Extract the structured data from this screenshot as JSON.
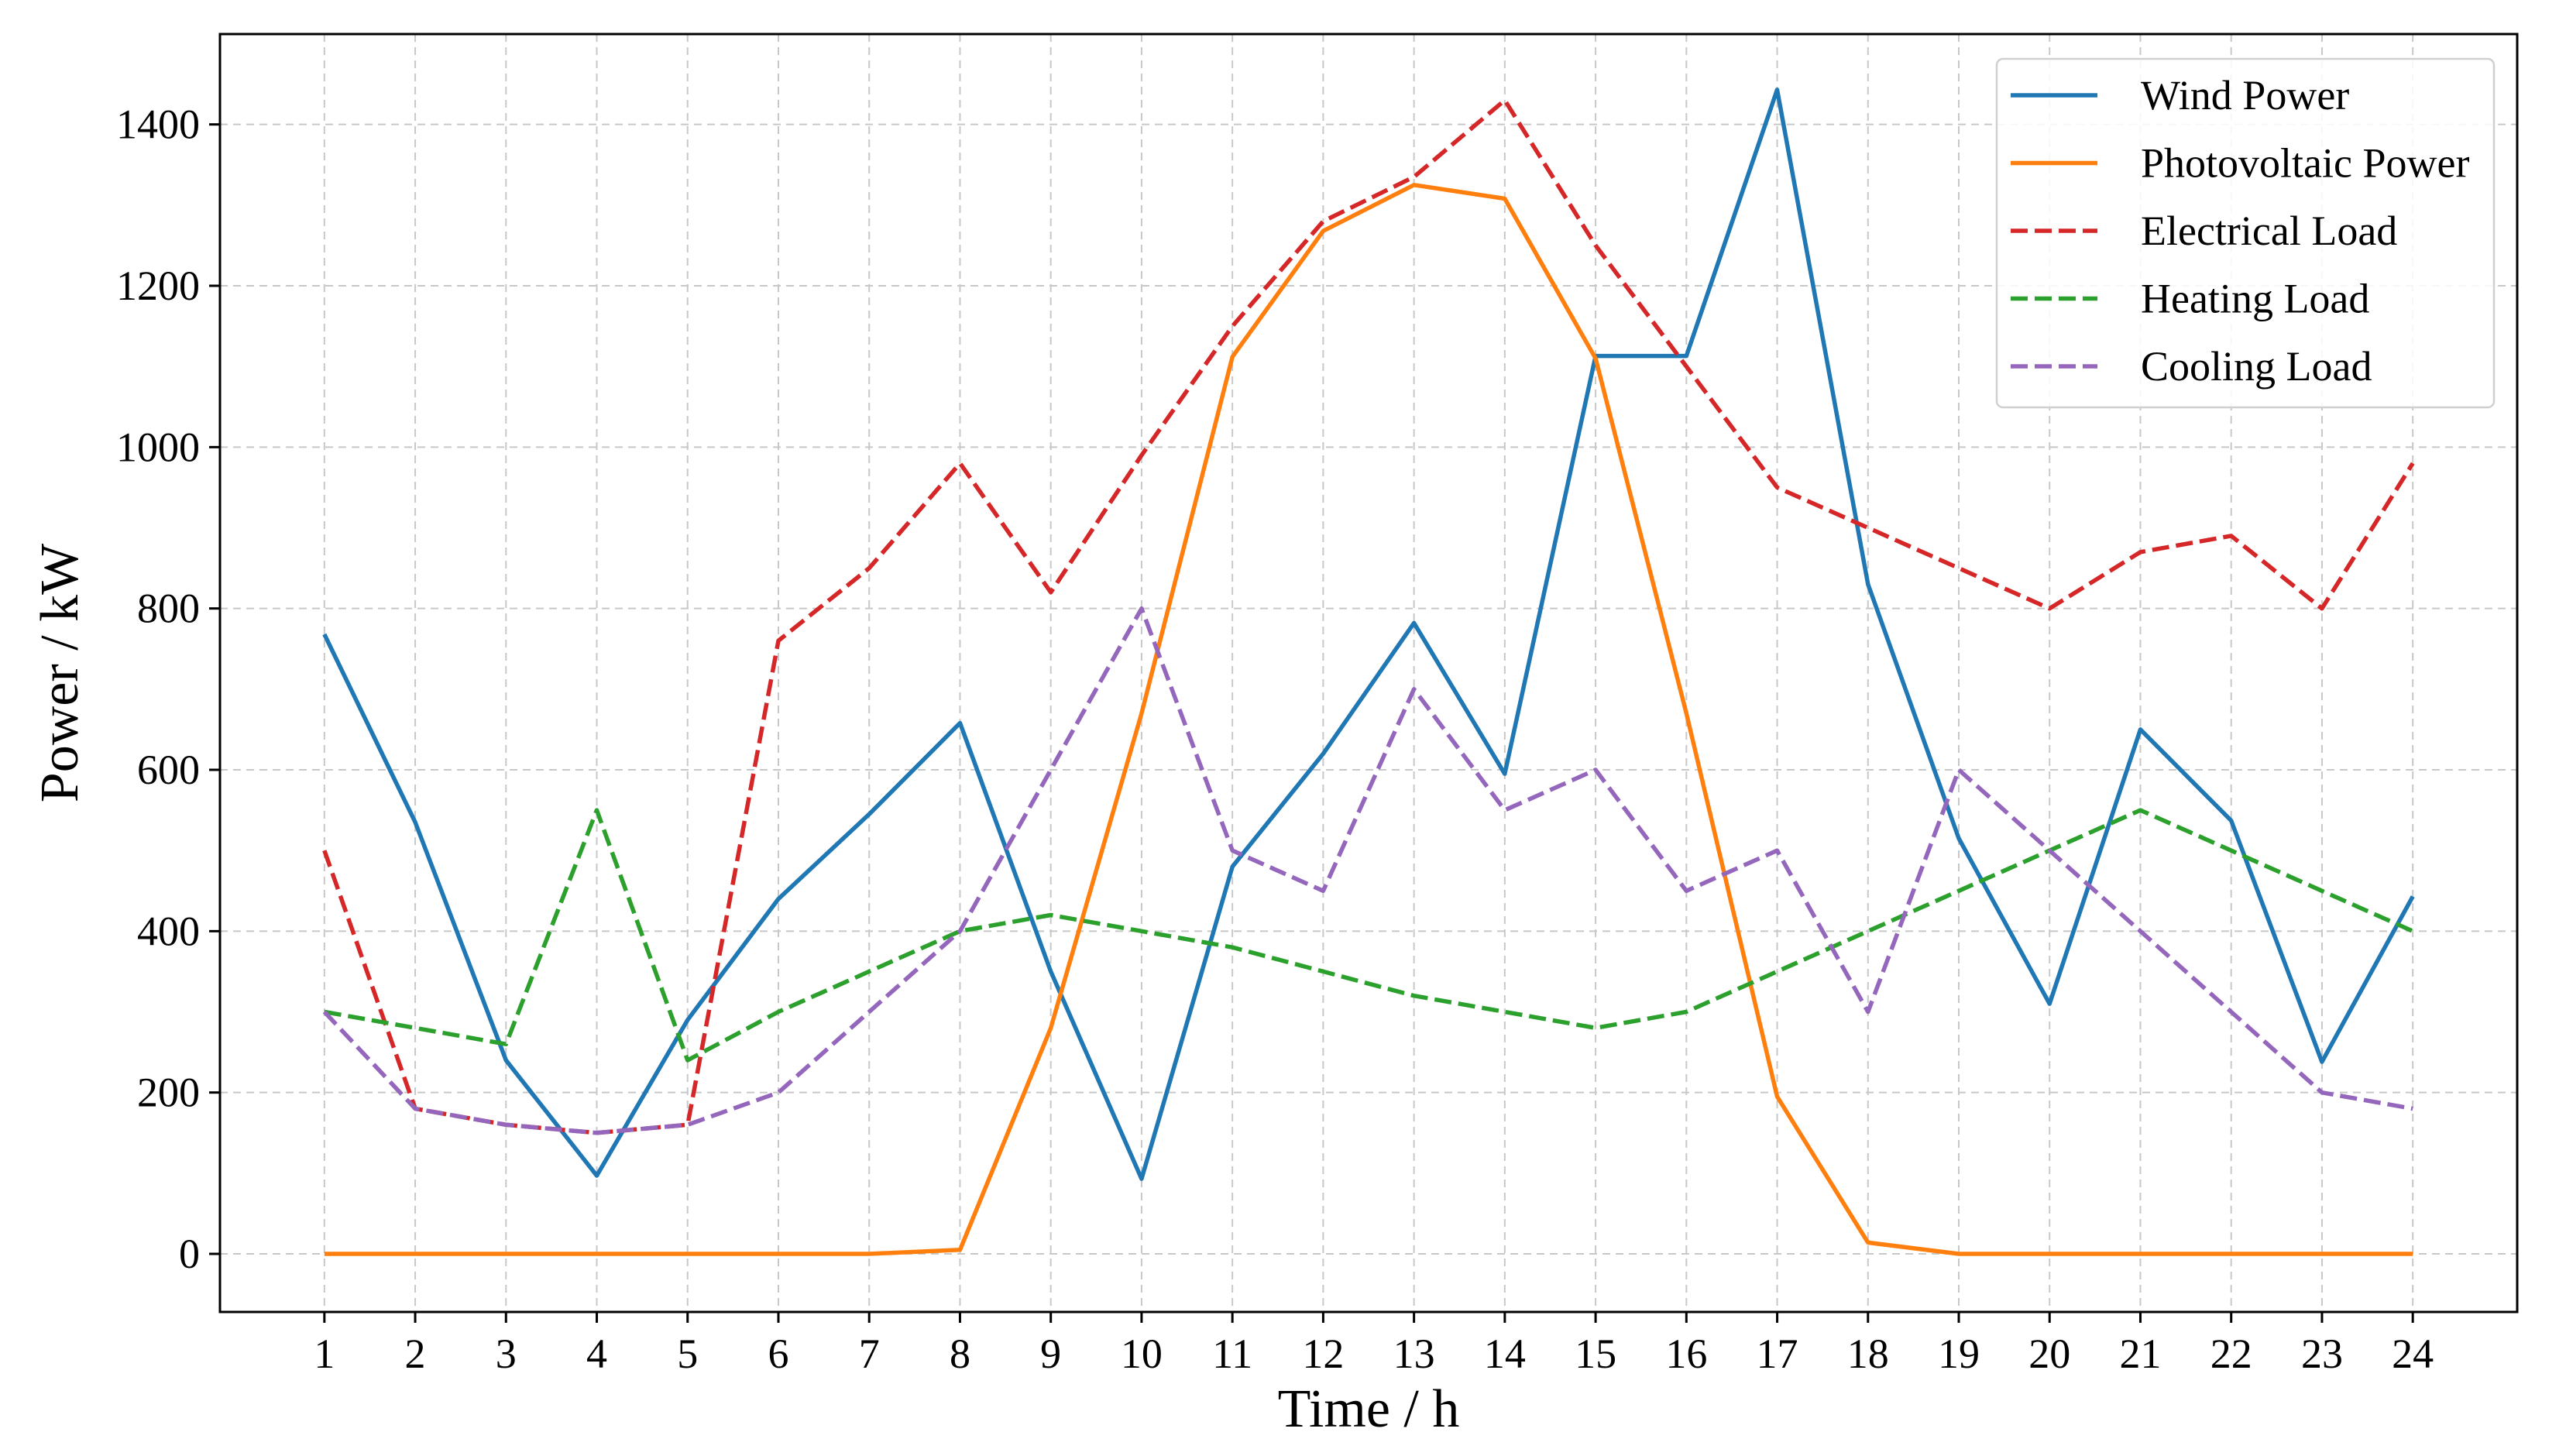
{
  "chart_data": {
    "type": "line",
    "xlabel": "Time / h",
    "ylabel": "Power / kW",
    "x": [
      1,
      2,
      3,
      4,
      5,
      6,
      7,
      8,
      9,
      10,
      11,
      12,
      13,
      14,
      15,
      16,
      17,
      18,
      19,
      20,
      21,
      22,
      23,
      24
    ],
    "xlim": [
      -0.15,
      25.15
    ],
    "ylim": [
      -72,
      1512
    ],
    "yticks": [
      0,
      200,
      400,
      600,
      800,
      1000,
      1200,
      1400
    ],
    "grid": true,
    "legend_position": "top-right",
    "series": [
      {
        "name": "Wind Power",
        "color": "#1f77b4",
        "dash": "solid",
        "values": [
          768,
          535,
          240,
          97,
          290,
          440,
          545,
          658,
          350,
          93,
          480,
          620,
          782,
          595,
          1113,
          1113,
          1443,
          830,
          515,
          310,
          650,
          537,
          238,
          443
        ]
      },
      {
        "name": "Photovoltaic Power",
        "color": "#ff7f0e",
        "dash": "solid",
        "values": [
          0,
          0,
          0,
          0,
          0,
          0,
          0,
          5,
          280,
          670,
          1112,
          1268,
          1325,
          1308,
          1110,
          670,
          195,
          14,
          0,
          0,
          0,
          0,
          0,
          0
        ]
      },
      {
        "name": "Electrical Load",
        "color": "#d62728",
        "dash": "dashed",
        "values": [
          500,
          180,
          160,
          150,
          160,
          760,
          850,
          980,
          820,
          990,
          1150,
          1280,
          1335,
          1430,
          1250,
          1100,
          950,
          900,
          850,
          800,
          870,
          890,
          800,
          980
        ]
      },
      {
        "name": "Heating Load",
        "color": "#2ca02c",
        "dash": "dashed",
        "values": [
          300,
          280,
          260,
          550,
          240,
          300,
          350,
          400,
          420,
          400,
          380,
          350,
          320,
          300,
          280,
          300,
          350,
          400,
          450,
          500,
          550,
          500,
          450,
          400
        ]
      },
      {
        "name": "Cooling Load",
        "color": "#9467bd",
        "dash": "dashed",
        "values": [
          300,
          180,
          160,
          150,
          160,
          200,
          300,
          400,
          600,
          800,
          500,
          450,
          700,
          550,
          600,
          450,
          500,
          300,
          600,
          500,
          400,
          300,
          200,
          180
        ]
      }
    ]
  }
}
